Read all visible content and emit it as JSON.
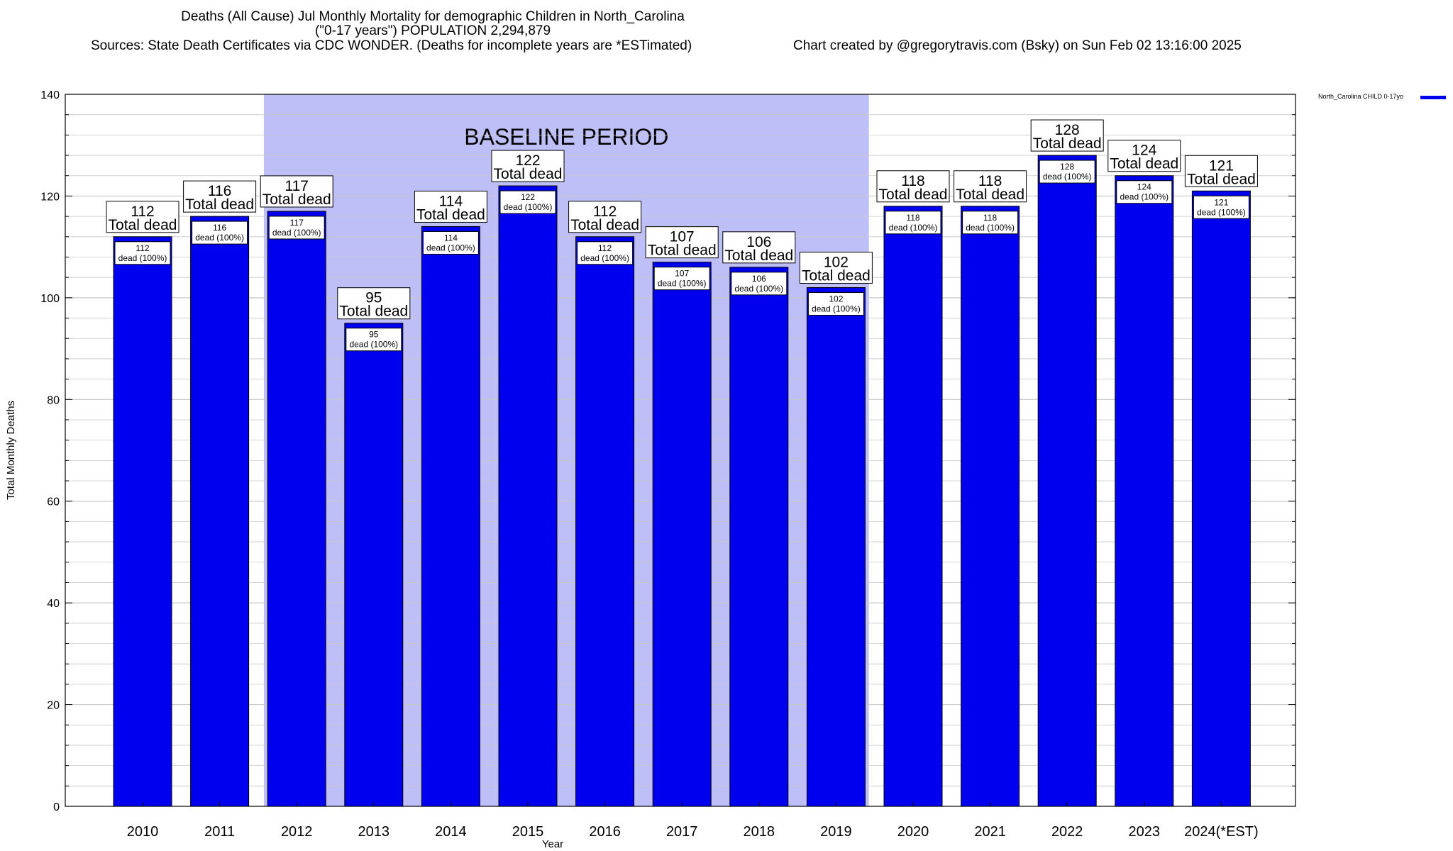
{
  "header": {
    "title": "Deaths (All Cause) Jul Monthly Mortality for demographic Children in North_Carolina",
    "subtitle": "(\"0-17 years\") POPULATION 2,294,879",
    "sources": "Sources: State Death Certificates via CDC WONDER. (Deaths for incomplete years are *ESTimated)",
    "credit": "Chart created by @gregorytravis.com (Bsky) on Sun Feb 02 13:16:00 2025"
  },
  "legend": {
    "label": "North_Carolina CHILD 0-17yo"
  },
  "colors": {
    "bar": "#0000ee",
    "baseline_shade": "#bfbff7",
    "grid": "#c8c8c8"
  },
  "chart_data": {
    "type": "bar",
    "title": "Deaths (All Cause) Jul Monthly Mortality for demographic Children in North_Carolina",
    "xlabel": "Year",
    "ylabel": "Total Monthly Deaths",
    "ylim": [
      0,
      140
    ],
    "yticks": [
      0,
      20,
      40,
      60,
      80,
      100,
      120,
      140
    ],
    "grid": true,
    "legend_position": "top-right",
    "baseline_label": "BASELINE PERIOD",
    "baseline_range": [
      "2012",
      "2019"
    ],
    "total_label": "Total dead",
    "segment_label_suffix": "dead (100%)",
    "categories": [
      "2010",
      "2011",
      "2012",
      "2013",
      "2014",
      "2015",
      "2016",
      "2017",
      "2018",
      "2019",
      "2020",
      "2021",
      "2022",
      "2023",
      "2024(*EST)"
    ],
    "series": [
      {
        "name": "North_Carolina CHILD 0-17yo",
        "values": [
          112,
          116,
          117,
          95,
          114,
          122,
          112,
          107,
          106,
          102,
          118,
          118,
          128,
          124,
          121
        ]
      }
    ]
  }
}
